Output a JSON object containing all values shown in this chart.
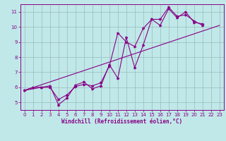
{
  "xlabel": "Windchill (Refroidissement éolien,°C)",
  "bg_color": "#c0e8e8",
  "line_color": "#880088",
  "grid_color": "#99bbbb",
  "xlim": [
    -0.5,
    23.5
  ],
  "ylim": [
    4.5,
    11.5
  ],
  "xticks": [
    0,
    1,
    2,
    3,
    4,
    5,
    6,
    7,
    8,
    9,
    10,
    11,
    12,
    13,
    14,
    15,
    16,
    17,
    18,
    19,
    20,
    21,
    22,
    23
  ],
  "yticks": [
    5,
    6,
    7,
    8,
    9,
    10,
    11
  ],
  "line1_x": [
    0,
    1,
    2,
    3,
    4,
    5,
    6,
    7,
    8,
    9,
    10,
    11,
    12,
    13,
    14,
    15,
    16,
    17,
    18,
    19,
    20,
    21,
    22,
    23
  ],
  "line1_y": [
    5.8,
    6.0,
    6.0,
    6.0,
    5.2,
    5.5,
    6.05,
    6.2,
    6.1,
    6.3,
    7.4,
    9.6,
    9.0,
    8.7,
    9.9,
    10.5,
    10.5,
    11.3,
    10.7,
    10.8,
    10.4,
    10.1,
    null,
    null
  ],
  "line2_x": [
    0,
    2,
    3,
    4,
    5,
    6,
    7,
    8,
    9,
    10,
    11,
    12,
    13,
    14,
    15,
    16,
    17,
    18,
    19,
    20,
    21
  ],
  "line2_y": [
    5.8,
    6.0,
    6.1,
    4.85,
    5.3,
    6.15,
    6.35,
    5.9,
    6.1,
    7.5,
    6.6,
    9.3,
    7.3,
    8.8,
    10.5,
    10.1,
    11.2,
    10.6,
    11.0,
    10.3,
    10.2
  ],
  "line3_x": [
    0,
    23
  ],
  "line3_y": [
    5.8,
    10.1
  ],
  "tick_fontsize": 5,
  "xlabel_fontsize": 5.5
}
